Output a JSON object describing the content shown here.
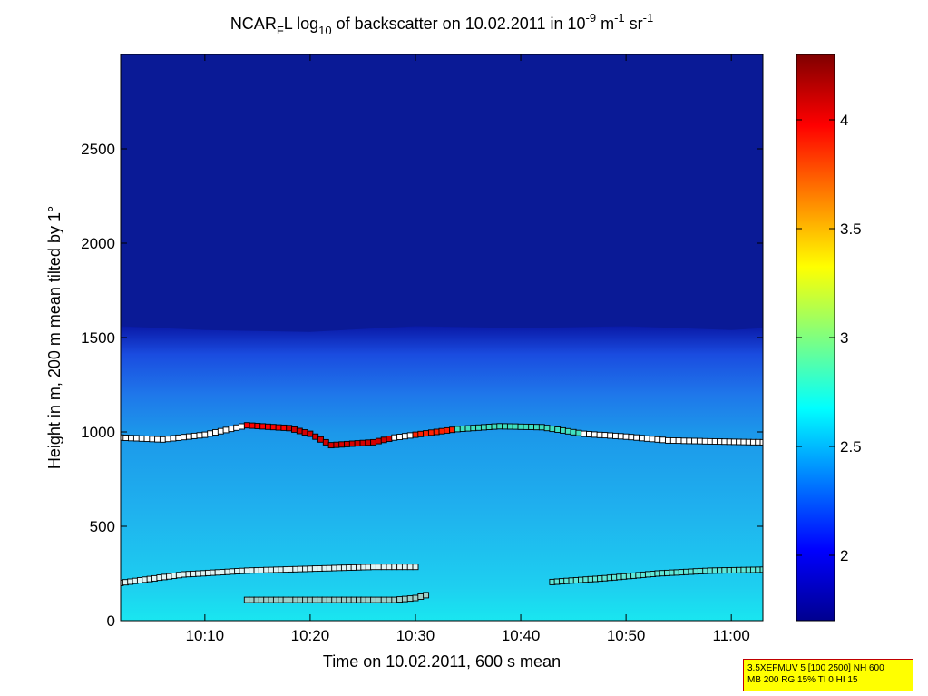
{
  "title": {
    "part1": "NCAR",
    "sub1": "F",
    "part2": "L log",
    "sub2": "10",
    "part3": " of backscatter on 10.02.2011 in 10",
    "sup1": "-9",
    "part4": " m",
    "sup2": "-1",
    "part5": " sr",
    "sup3": "-1"
  },
  "infobox": {
    "line1": "3.5XEFMUV 5 [100 2500] NH 600",
    "line2": "MB 200 RG 15% TI 0 HI 15"
  },
  "chart_data": {
    "type": "heatmap",
    "xlabel": "Time on 10.02.2011, 600 s mean",
    "ylabel": "Height in m, 200 m mean tilted by 1°",
    "x_range_minutes": [
      2,
      63
    ],
    "xlim": [
      "10:02",
      "11:03"
    ],
    "ylim": [
      0,
      3000
    ],
    "x_ticks": [
      "10:10",
      "10:20",
      "10:30",
      "10:40",
      "10:50",
      "11:00"
    ],
    "y_ticks": [
      0,
      500,
      1000,
      1500,
      2000,
      2500
    ],
    "colorbar": {
      "range": [
        1.7,
        4.3
      ],
      "ticks": [
        2,
        2.5,
        3,
        3.5,
        4
      ],
      "colormap": "jet"
    },
    "field": {
      "surface_value": 2.75,
      "mixed_layer_value": 2.6,
      "transition_value": 2.2,
      "free_troposphere_value": 1.78,
      "transition_top_m": [
        1560,
        1540,
        1530,
        1560,
        1550,
        1560,
        1540,
        1550
      ],
      "transition_top_times": [
        "10:02",
        "10:10",
        "10:20",
        "10:30",
        "10:40",
        "10:50",
        "11:00",
        "11:03"
      ]
    },
    "series": [
      {
        "role": "cloud_base",
        "times": [
          "10:02",
          "10:06",
          "10:10",
          "10:14",
          "10:18",
          "10:20",
          "10:22",
          "10:26",
          "10:28",
          "10:30",
          "10:34",
          "10:38",
          "10:42",
          "10:46",
          "10:50",
          "10:54",
          "10:58",
          "11:03"
        ],
        "heights": [
          970,
          960,
          985,
          1035,
          1020,
          990,
          930,
          945,
          970,
          985,
          1015,
          1030,
          1025,
          990,
          975,
          955,
          950,
          945
        ],
        "colors": [
          "#ffffff",
          "#ffffff",
          "#ffffff",
          "#ff0000",
          "#d40000",
          "#d40000",
          "#d40000",
          "#d40000",
          "#ffffff",
          "#ff2000",
          "#40e0c0",
          "#40e0c0",
          "#40e0c0",
          "#ffffff",
          "#ffffff",
          "#ffffff",
          "#ffffff",
          "#ffffff"
        ]
      },
      {
        "role": "layer_low_1",
        "times": [
          "10:02",
          "10:08",
          "10:14",
          "10:20",
          "10:26",
          "10:30"
        ],
        "heights": [
          200,
          245,
          265,
          275,
          285,
          285
        ],
        "color": "#e0f4f4"
      },
      {
        "role": "layer_low_2",
        "times": [
          "10:43",
          "10:48",
          "10:53",
          "10:58",
          "11:03"
        ],
        "heights": [
          205,
          225,
          250,
          265,
          270
        ],
        "color": "#60e8d8"
      },
      {
        "role": "layer_lowest",
        "times": [
          "10:14",
          "10:20",
          "10:26",
          "10:28",
          "10:30",
          "10:31"
        ],
        "heights": [
          110,
          110,
          110,
          110,
          120,
          135
        ],
        "color": "#9ecfc8"
      }
    ]
  }
}
